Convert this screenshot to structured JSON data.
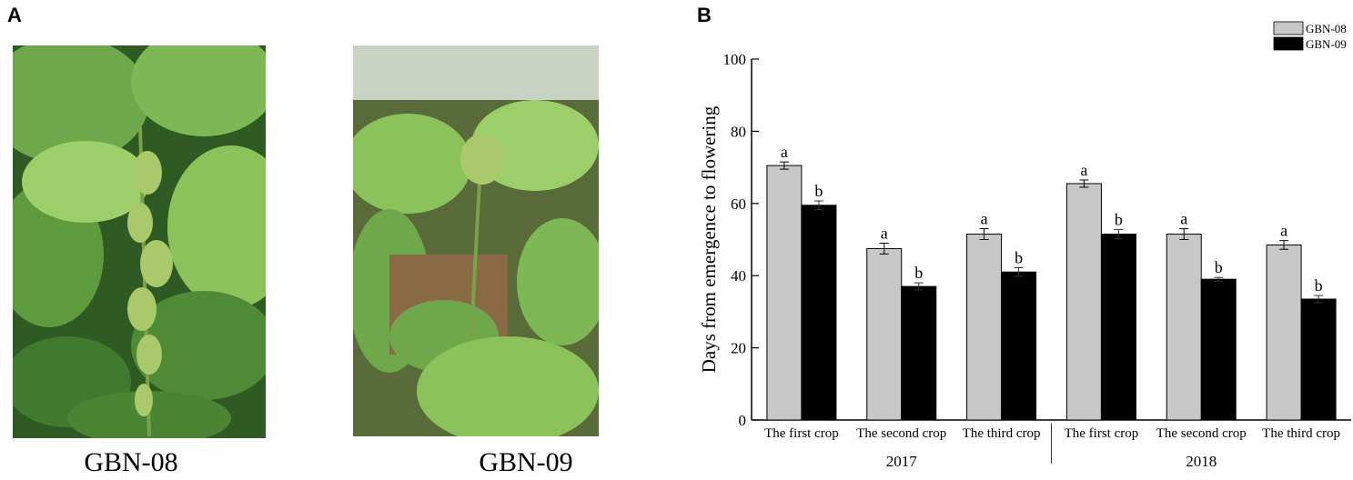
{
  "panels": {
    "a_label": "A",
    "b_label": "B",
    "photo_left_caption": "GBN-08",
    "photo_right_caption": "GBN-09"
  },
  "colors": {
    "gbn08": "#c8c8c8",
    "gbn09": "#000000",
    "leaf_dark": "#3f7a2e",
    "leaf_light": "#8cc25a",
    "flower": "#a9c96a"
  },
  "chart_data": {
    "type": "bar",
    "ylabel": "Days from emergence to flowering",
    "ylim": [
      0,
      100
    ],
    "yticks": [
      0,
      20,
      40,
      60,
      80,
      100
    ],
    "categories": [
      "The first crop",
      "The second crop",
      "The third crop",
      "The first crop",
      "The second crop",
      "The third crop"
    ],
    "groups": [
      {
        "label": "2017",
        "categories": [
          0,
          1,
          2
        ]
      },
      {
        "label": "2018",
        "categories": [
          3,
          4,
          5
        ]
      }
    ],
    "series": [
      {
        "name": "GBN-08",
        "color": "#c8c8c8",
        "values": [
          70.5,
          47.5,
          51.5,
          65.5,
          51.5,
          48.5
        ],
        "errors": [
          1.0,
          1.5,
          1.5,
          1.0,
          1.5,
          1.2
        ],
        "letters": [
          "a",
          "a",
          "a",
          "a",
          "a",
          "a"
        ]
      },
      {
        "name": "GBN-09",
        "color": "#000000",
        "values": [
          59.5,
          37.0,
          41.0,
          51.5,
          39.0,
          33.5
        ],
        "errors": [
          1.2,
          1.0,
          1.2,
          1.3,
          0.5,
          1.0
        ],
        "letters": [
          "b",
          "b",
          "b",
          "b",
          "b",
          "b"
        ]
      }
    ],
    "legend_position": "top-right",
    "grid": false
  }
}
